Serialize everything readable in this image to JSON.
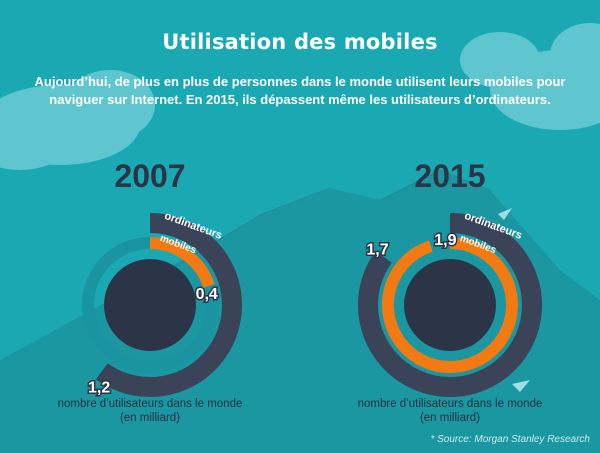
{
  "title": "Utilisation des mobiles",
  "subtitle": "Aujourd’hui, de plus en plus de personnes dans le monde utilisent leurs mobiles pour naviguer sur Internet. En 2015, ils dépassent même les utilisateurs d’ordinateurs.",
  "source": "* Source: Morgan Stanley Research",
  "colors": {
    "background": "#1aa9b3",
    "ordinateurs": "#3a4357",
    "mobiles": "#f27a12",
    "center": "#2b3547",
    "track": "#1994a0"
  },
  "chart_data": [
    {
      "type": "donut",
      "year": "2007",
      "series": [
        {
          "name": "ordinateurs",
          "value": 1.2,
          "label": "1,2"
        },
        {
          "name": "mobiles",
          "value": 0.4,
          "label": "0,4"
        }
      ],
      "caption_line1": "nombre d’utilisateurs dans le monde",
      "caption_line2": "(en milliard)"
    },
    {
      "type": "donut",
      "year": "2015",
      "series": [
        {
          "name": "ordinateurs",
          "value": 1.7,
          "label": "1,7"
        },
        {
          "name": "mobiles",
          "value": 1.9,
          "label": "1,9"
        }
      ],
      "caption_line1": "nombre d’utilisateurs dans le monde",
      "caption_line2": "(en milliard)"
    }
  ]
}
